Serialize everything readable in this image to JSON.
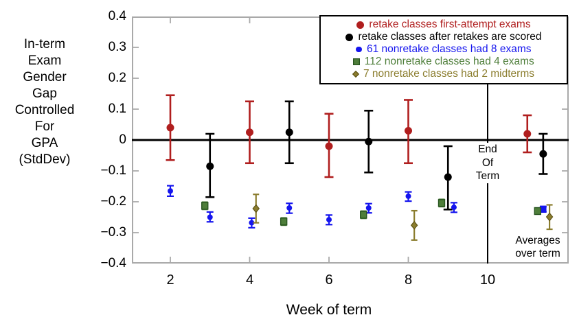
{
  "figure": {
    "background": "#ffffff",
    "frame_color": "#a9a9a9"
  },
  "axes": {
    "y_title": "In-term\nExam\nGender\nGap\nControlled\nFor\nGPA\n(StdDev)",
    "x_title": "Week of term",
    "y_ticks": [
      {
        "v": 0.4,
        "label": "0.4"
      },
      {
        "v": 0.3,
        "label": "0.3"
      },
      {
        "v": 0.2,
        "label": "0.2"
      },
      {
        "v": 0.1,
        "label": "0.1"
      },
      {
        "v": 0.0,
        "label": "0"
      },
      {
        "v": -0.1,
        "label": "−0.1"
      },
      {
        "v": -0.2,
        "label": "−0.2"
      },
      {
        "v": -0.3,
        "label": "−0.3"
      },
      {
        "v": -0.4,
        "label": "−0.4"
      }
    ],
    "x_ticks": [
      {
        "v": 2,
        "label": "2"
      },
      {
        "v": 4,
        "label": "4"
      },
      {
        "v": 6,
        "label": "6"
      },
      {
        "v": 8,
        "label": "8"
      },
      {
        "v": 10,
        "label": "10"
      }
    ]
  },
  "annotations": {
    "end_of_term": "End\nOf\nTerm",
    "averages": "Averages\nover term"
  },
  "chart_data": {
    "type": "scatter",
    "title": "",
    "xlabel": "Week of term",
    "ylabel": "In-term Exam Gender Gap Controlled For GPA (StdDev)",
    "xlim": [
      1.0,
      12.05
    ],
    "ylim": [
      -0.4,
      0.4
    ],
    "grid": false,
    "legend_position": "top-right",
    "end_of_term_week": 10,
    "series": [
      {
        "name": "retake classes first-attempt exams",
        "color": "#b01e1e",
        "marker": "circle",
        "marker_size": 11,
        "cap_width": 13,
        "line_width": 2.6,
        "points": [
          {
            "week": 2.0,
            "value": 0.04,
            "lo": -0.065,
            "hi": 0.145
          },
          {
            "week": 4.0,
            "value": 0.025,
            "lo": -0.075,
            "hi": 0.125
          },
          {
            "week": 6.0,
            "value": -0.02,
            "lo": -0.12,
            "hi": 0.085
          },
          {
            "week": 8.0,
            "value": 0.03,
            "lo": -0.075,
            "hi": 0.13
          },
          {
            "week": 11.0,
            "value": 0.02,
            "lo": -0.04,
            "hi": 0.08
          }
        ]
      },
      {
        "name": "retake classes after retakes are scored",
        "color": "#000000",
        "marker": "circle",
        "marker_size": 11,
        "cap_width": 13,
        "line_width": 2.6,
        "points": [
          {
            "week": 3.0,
            "value": -0.085,
            "lo": -0.185,
            "hi": 0.02
          },
          {
            "week": 5.0,
            "value": 0.025,
            "lo": -0.075,
            "hi": 0.125
          },
          {
            "week": 7.0,
            "value": -0.005,
            "lo": -0.105,
            "hi": 0.095
          },
          {
            "week": 9.0,
            "value": -0.12,
            "lo": -0.225,
            "hi": -0.02
          },
          {
            "week": 11.4,
            "value": -0.045,
            "lo": -0.11,
            "hi": 0.02
          }
        ]
      },
      {
        "name": "61 nonretake classes had 8 exams",
        "color": "#1515ee",
        "marker": "circle",
        "marker_size": 8,
        "cap_width": 10,
        "line_width": 2.2,
        "points": [
          {
            "week": 2.0,
            "value": -0.165,
            "lo": -0.182,
            "hi": -0.148
          },
          {
            "week": 3.0,
            "value": -0.25,
            "lo": -0.265,
            "hi": -0.233
          },
          {
            "week": 4.05,
            "value": -0.268,
            "lo": -0.284,
            "hi": -0.253
          },
          {
            "week": 5.0,
            "value": -0.22,
            "lo": -0.237,
            "hi": -0.205
          },
          {
            "week": 6.0,
            "value": -0.258,
            "lo": -0.274,
            "hi": -0.243
          },
          {
            "week": 7.0,
            "value": -0.22,
            "lo": -0.236,
            "hi": -0.206
          },
          {
            "week": 8.0,
            "value": -0.182,
            "lo": -0.198,
            "hi": -0.168
          },
          {
            "week": 9.15,
            "value": -0.218,
            "lo": -0.234,
            "hi": -0.203
          },
          {
            "week": 11.4,
            "value": -0.224,
            "lo": -0.232,
            "hi": -0.216,
            "marker": "square"
          }
        ]
      },
      {
        "name": "112 nonretake classes had 4 exams",
        "color": "#4e7e3a",
        "marker_border": "#27541f",
        "marker": "square",
        "marker_size": 9,
        "cap_width": 9,
        "line_width": 2,
        "points": [
          {
            "week": 2.87,
            "value": -0.213,
            "lo": -0.225,
            "hi": -0.201
          },
          {
            "week": 4.86,
            "value": -0.264,
            "lo": -0.276,
            "hi": -0.252
          },
          {
            "week": 6.87,
            "value": -0.242,
            "lo": -0.254,
            "hi": -0.23
          },
          {
            "week": 8.84,
            "value": -0.204,
            "lo": -0.216,
            "hi": -0.192
          },
          {
            "week": 11.26,
            "value": -0.23,
            "lo": -0.238,
            "hi": -0.222
          }
        ]
      },
      {
        "name": "7 nonretake classes had 2 midterms",
        "color": "#8b7d2e",
        "marker_border": "#5f5416",
        "marker": "diamond",
        "marker_size": 9,
        "cap_width": 9,
        "line_width": 2.2,
        "points": [
          {
            "week": 4.16,
            "value": -0.222,
            "lo": -0.268,
            "hi": -0.176
          },
          {
            "week": 8.15,
            "value": -0.276,
            "lo": -0.324,
            "hi": -0.229
          },
          {
            "week": 11.56,
            "value": -0.249,
            "lo": -0.289,
            "hi": -0.21
          }
        ]
      }
    ]
  }
}
